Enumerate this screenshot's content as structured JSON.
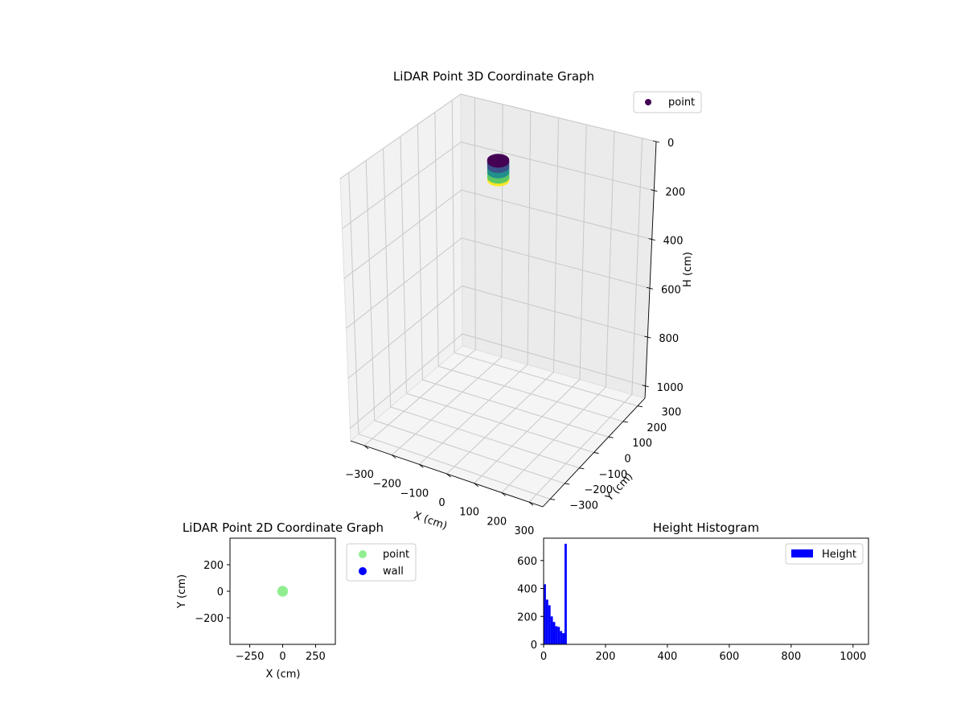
{
  "chart_data": [
    {
      "type": "scatter3d",
      "title": "LiDAR Point 3D Coordinate Graph",
      "xlabel": "X (cm)",
      "ylabel": "Y (cm)",
      "zlabel": "H (cm)",
      "x_ticks": [
        -300,
        -200,
        -100,
        0,
        100,
        200,
        300
      ],
      "y_ticks": [
        -300,
        -200,
        -100,
        0,
        100,
        200,
        300
      ],
      "z_ticks": [
        0,
        200,
        400,
        600,
        800,
        1000
      ],
      "z_inverted": true,
      "xlim": [
        -350,
        350
      ],
      "ylim": [
        -350,
        350
      ],
      "zlim": [
        0,
        1050
      ],
      "legend": [
        "point"
      ],
      "legend_position": "top-right",
      "series": [
        {
          "name": "point",
          "colormap": "viridis",
          "shape": "cylinder",
          "center_x": 0,
          "center_y": 0,
          "radius": 20,
          "h_range": [
            0,
            80
          ],
          "colors": [
            "#440154",
            "#3b528b",
            "#21918c",
            "#5ec962",
            "#fde725"
          ]
        }
      ],
      "grid": true
    },
    {
      "type": "scatter",
      "title": "LiDAR Point 2D Coordinate Graph",
      "xlabel": "X (cm)",
      "ylabel": "Y (cm)",
      "xlim": [
        -400,
        400
      ],
      "ylim": [
        -400,
        400
      ],
      "x_ticks": [
        -250,
        0,
        250
      ],
      "y_ticks": [
        -200,
        0,
        200
      ],
      "legend": [
        "point",
        "wall"
      ],
      "legend_position": "outside-right",
      "series": [
        {
          "name": "point",
          "color": "#90ee90",
          "center": [
            0,
            0
          ],
          "radius": 20
        },
        {
          "name": "wall",
          "color": "#0000ff",
          "points": []
        }
      ],
      "grid": false
    },
    {
      "type": "bar",
      "title": "Height Histogram",
      "legend": [
        "Height"
      ],
      "legend_position": "top-right",
      "xlim": [
        0,
        1050
      ],
      "ylim": [
        0,
        760
      ],
      "x_ticks": [
        0,
        200,
        400,
        600,
        800,
        1000
      ],
      "y_ticks": [
        0,
        200,
        400,
        600
      ],
      "bin_width": 7.5,
      "bin_edges_start": 0,
      "series": [
        {
          "name": "Height",
          "color": "#0000ff",
          "values": [
            430,
            320,
            280,
            200,
            160,
            130,
            125,
            95,
            80,
            720
          ]
        }
      ],
      "grid": false
    }
  ]
}
